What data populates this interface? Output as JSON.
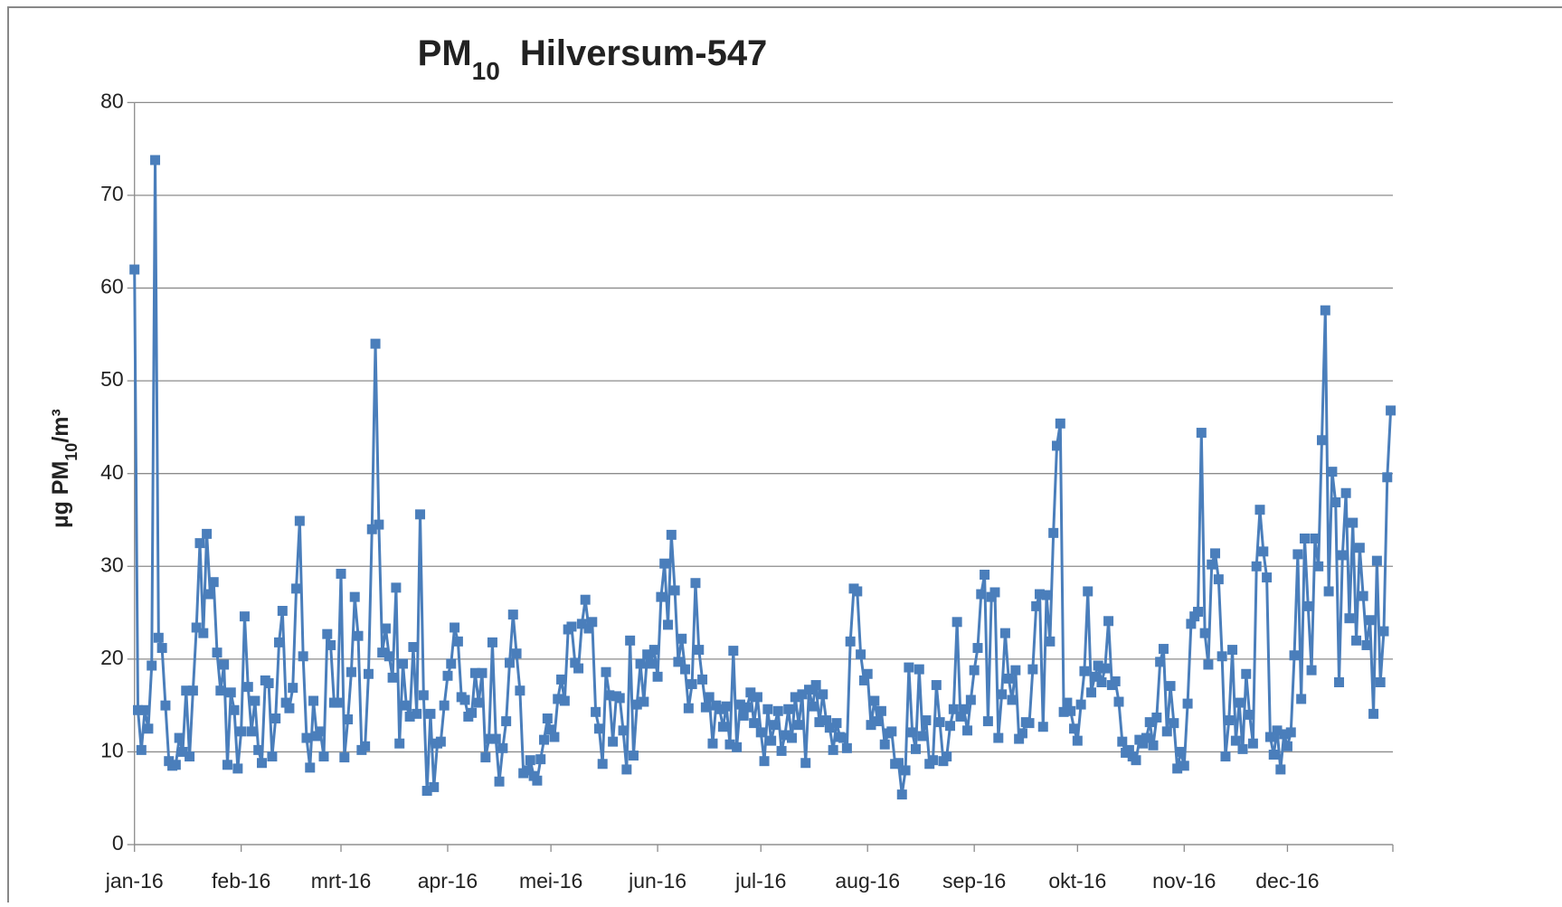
{
  "chart_data": {
    "type": "line",
    "title_parts": [
      "PM",
      "10",
      "Hilversum-547"
    ],
    "ylabel_parts": [
      "µg PM",
      "10",
      "/m³"
    ],
    "categories": [
      "jan-16",
      null,
      null,
      null,
      null,
      null,
      null,
      null,
      null,
      null,
      null,
      null,
      null,
      null,
      null,
      null,
      null,
      null,
      null,
      null,
      null,
      null,
      null,
      null,
      null,
      null,
      null,
      null,
      null,
      null,
      null,
      "feb-16",
      null,
      null,
      null,
      null,
      null,
      null,
      null,
      null,
      null,
      null,
      null,
      null,
      null,
      null,
      null,
      null,
      null,
      null,
      null,
      null,
      null,
      null,
      null,
      null,
      null,
      null,
      null,
      null,
      "mrt-16",
      null,
      null,
      null,
      null,
      null,
      null,
      null,
      null,
      null,
      null,
      null,
      null,
      null,
      null,
      null,
      null,
      null,
      null,
      null,
      null,
      null,
      null,
      null,
      null,
      null,
      null,
      null,
      null,
      null,
      null,
      "apr-16",
      null,
      null,
      null,
      null,
      null,
      null,
      null,
      null,
      null,
      null,
      null,
      null,
      null,
      null,
      null,
      null,
      null,
      null,
      null,
      null,
      null,
      null,
      null,
      null,
      null,
      null,
      null,
      null,
      null,
      "mei-16",
      null,
      null,
      null,
      null,
      null,
      null,
      null,
      null,
      null,
      null,
      null,
      null,
      null,
      null,
      null,
      null,
      null,
      null,
      null,
      null,
      null,
      null,
      null,
      null,
      null,
      null,
      null,
      null,
      null,
      null,
      "jun-16",
      null,
      null,
      null,
      null,
      null,
      null,
      null,
      null,
      null,
      null,
      null,
      null,
      null,
      null,
      null,
      null,
      null,
      null,
      null,
      null,
      null,
      null,
      null,
      null,
      null,
      null,
      null,
      null,
      null,
      "jul-16",
      null,
      null,
      null,
      null,
      null,
      null,
      null,
      null,
      null,
      null,
      null,
      null,
      null,
      null,
      null,
      null,
      null,
      null,
      null,
      null,
      null,
      null,
      null,
      null,
      null,
      null,
      null,
      null,
      null,
      null,
      "aug-16",
      null,
      null,
      null,
      null,
      null,
      null,
      null,
      null,
      null,
      null,
      null,
      null,
      null,
      null,
      null,
      null,
      null,
      null,
      null,
      null,
      null,
      null,
      null,
      null,
      null,
      null,
      null,
      null,
      null,
      null,
      "sep-16",
      null,
      null,
      null,
      null,
      null,
      null,
      null,
      null,
      null,
      null,
      null,
      null,
      null,
      null,
      null,
      null,
      null,
      null,
      null,
      null,
      null,
      null,
      null,
      null,
      null,
      null,
      null,
      null,
      null,
      "okt-16",
      null,
      null,
      null,
      null,
      null,
      null,
      null,
      null,
      null,
      null,
      null,
      null,
      null,
      null,
      null,
      null,
      null,
      null,
      null,
      null,
      null,
      null,
      null,
      null,
      null,
      null,
      null,
      null,
      null,
      null,
      "nov-16",
      null,
      null,
      null,
      null,
      null,
      null,
      null,
      null,
      null,
      null,
      null,
      null,
      null,
      null,
      null,
      null,
      null,
      null,
      null,
      null,
      null,
      null,
      null,
      null,
      null,
      null,
      null,
      null,
      null,
      "dec-16",
      null,
      null,
      null,
      null,
      null,
      null,
      null,
      null,
      null,
      null,
      null,
      null,
      null,
      null,
      null,
      null,
      null,
      null,
      null,
      null,
      null,
      null,
      null,
      null,
      null,
      null,
      null,
      null,
      null,
      null
    ],
    "values": [
      62,
      14.5,
      10.2,
      14.5,
      12.5,
      19.3,
      73.8,
      22.3,
      21.2,
      15,
      9,
      8.5,
      8.6,
      11.5,
      10,
      16.6,
      9.5,
      16.6,
      23.4,
      32.5,
      22.8,
      33.5,
      27,
      28.3,
      20.7,
      16.6,
      19.4,
      8.6,
      16.4,
      14.5,
      8.2,
      12.2,
      24.6,
      17,
      12.2,
      15.5,
      10.2,
      8.8,
      17.7,
      17.4,
      9.5,
      13.6,
      21.8,
      25.2,
      15.3,
      14.7,
      16.9,
      27.6,
      34.9,
      20.3,
      11.5,
      8.3,
      15.5,
      11.7,
      12.2,
      9.5,
      22.7,
      21.5,
      15.3,
      15.3,
      29.2,
      9.4,
      13.5,
      18.6,
      26.7,
      22.5,
      10.2,
      10.6,
      18.4,
      34,
      54,
      34.5,
      20.7,
      23.3,
      20.3,
      18,
      27.7,
      10.9,
      19.5,
      15,
      13.8,
      21.3,
      14.1,
      35.6,
      16.1,
      5.8,
      14.1,
      6.2,
      10.9,
      11.1,
      15,
      18.2,
      19.5,
      23.4,
      21.9,
      15.9,
      15.6,
      13.8,
      14.2,
      18.5,
      15.3,
      18.5,
      9.4,
      11.4,
      21.8,
      11.4,
      6.8,
      10.4,
      13.3,
      19.6,
      24.8,
      20.6,
      16.6,
      7.7,
      8,
      9.1,
      7.4,
      6.9,
      9.2,
      11.3,
      13.6,
      12.4,
      11.6,
      15.7,
      17.8,
      15.5,
      23.2,
      23.5,
      19.6,
      19,
      23.8,
      26.4,
      23.3,
      24,
      14.3,
      12.5,
      8.7,
      18.6,
      16.1,
      11.1,
      16,
      15.8,
      12.3,
      8.1,
      22,
      9.6,
      15.1,
      19.5,
      15.4,
      20.5,
      19.5,
      21,
      18.1,
      26.7,
      30.3,
      23.7,
      33.4,
      27.4,
      19.7,
      22.2,
      18.9,
      14.7,
      17.3,
      28.2,
      21,
      17.8,
      14.8,
      15.9,
      10.9,
      15,
      14.6,
      12.7,
      14.9,
      10.8,
      20.9,
      10.5,
      15.1,
      13.9,
      14.8,
      16.4,
      13.1,
      15.9,
      12.1,
      9,
      14.6,
      11.2,
      12.9,
      14.4,
      10.1,
      11.8,
      14.6,
      11.5,
      15.9,
      12.9,
      16.2,
      8.8,
      16.7,
      14.9,
      17.2,
      13.2,
      16.2,
      13.4,
      12.6,
      10.2,
      13.1,
      11.6,
      11.5,
      10.4,
      21.9,
      27.6,
      27.3,
      20.5,
      17.7,
      18.4,
      12.9,
      15.5,
      13.3,
      14.4,
      10.8,
      12,
      12.2,
      8.7,
      8.8,
      5.4,
      8,
      19.1,
      12.1,
      10.3,
      18.9,
      11.7,
      13.4,
      8.7,
      9.1,
      17.2,
      13.2,
      9,
      9.5,
      12.8,
      14.6,
      24,
      13.8,
      14.6,
      12.3,
      15.6,
      18.8,
      21.2,
      27,
      29.1,
      13.3,
      26.7,
      27.2,
      11.5,
      16.2,
      22.8,
      17.9,
      15.6,
      18.8,
      11.4,
      12,
      13.2,
      13.1,
      18.9,
      25.7,
      27,
      12.7,
      26.9,
      21.9,
      33.6,
      43,
      45.4,
      14.3,
      15.3,
      14.4,
      12.5,
      11.2,
      15.1,
      18.7,
      27.3,
      16.4,
      18.1,
      19.3,
      17.5,
      19,
      24.1,
      17.2,
      17.6,
      15.4,
      11.1,
      9.9,
      10.2,
      9.5,
      9.1,
      11.3,
      10.9,
      11.5,
      13.2,
      10.7,
      13.7,
      19.7,
      21.1,
      12.2,
      17.1,
      13.1,
      8.2,
      10,
      8.5,
      15.2,
      23.8,
      24.6,
      25.1,
      44.4,
      22.8,
      19.4,
      30.2,
      31.4,
      28.6,
      20.3,
      9.5,
      13.4,
      21,
      11.2,
      15.3,
      10.3,
      18.4,
      14,
      10.9,
      30,
      36.1,
      31.6,
      28.8,
      11.6,
      9.7,
      12.3,
      8.1,
      11.9,
      10.6,
      12.1,
      20.4,
      31.3,
      15.7,
      33,
      25.7,
      18.8,
      33,
      30,
      43.6,
      57.6,
      27.3,
      40.2,
      36.9,
      17.5,
      31.2,
      37.9,
      24.4,
      34.7,
      22,
      32,
      26.8,
      21.5,
      24.2,
      14.1,
      30.6,
      17.5,
      23,
      39.6,
      46.8
    ],
    "color": "#4a7ebb",
    "ylim": [
      0,
      80
    ],
    "yticks": [
      0,
      10,
      20,
      30,
      40,
      50,
      60,
      70,
      80
    ],
    "grid": true,
    "markers": "square"
  }
}
